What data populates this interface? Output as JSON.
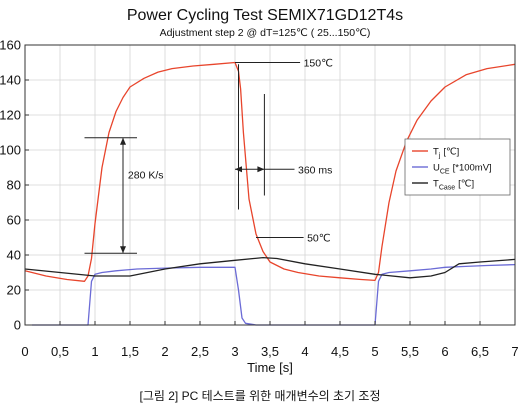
{
  "chart_data": {
    "type": "line",
    "title": "Power Cycling Test SEMIX71GD12T4s",
    "subtitle": "Adjustment step 2 @  dT=125℃ ( 25...150℃)",
    "xlabel": "Time [s]",
    "ylabel": "",
    "xlim": [
      0,
      7
    ],
    "ylim": [
      0,
      160
    ],
    "x_ticks": [
      "0",
      "0,5",
      "1",
      "1,5",
      "2",
      "2,5",
      "3",
      "3,5",
      "4",
      "4,5",
      "5",
      "5,5",
      "6",
      "6,5",
      "7"
    ],
    "y_ticks": [
      "0",
      "20",
      "40",
      "60",
      "80",
      "100",
      "120",
      "140",
      "160"
    ],
    "grid": true,
    "legend_position": "right",
    "colors": {
      "tj": "#e8452c",
      "uce": "#6b6bd6",
      "tcase": "#222222",
      "grid": "#d4d4d4"
    },
    "series": [
      {
        "name": "Tj [℃]",
        "legend_main": "T",
        "legend_sub": "j",
        "legend_unit": "[℃]",
        "x": [
          0,
          0.3,
          0.6,
          0.85,
          0.9,
          0.95,
          1.0,
          1.1,
          1.2,
          1.3,
          1.4,
          1.5,
          1.7,
          1.9,
          2.1,
          2.4,
          2.7,
          3.0,
          3.05,
          3.08,
          3.12,
          3.2,
          3.3,
          3.4,
          3.5,
          3.7,
          3.9,
          4.2,
          4.5,
          4.8,
          5.0,
          5.05,
          5.1,
          5.2,
          5.3,
          5.45,
          5.6,
          5.8,
          6.0,
          6.3,
          6.6,
          7.0
        ],
        "y": [
          31,
          28,
          26,
          25,
          28,
          38,
          58,
          90,
          110,
          122,
          130,
          136,
          141,
          144.5,
          146.5,
          148,
          149,
          150,
          145,
          135,
          110,
          72,
          52,
          42,
          36,
          32,
          30,
          28,
          27,
          26,
          25.5,
          30,
          45,
          70,
          88,
          105,
          117,
          128,
          136,
          143,
          146.5,
          149
        ]
      },
      {
        "name": "UCE [*100mV]",
        "legend_main": "U",
        "legend_sub": "CE",
        "legend_unit": "[*100mV]",
        "x": [
          0.1,
          0.9,
          0.95,
          1.0,
          1.1,
          1.3,
          1.6,
          2.0,
          2.5,
          3.0,
          3.05,
          3.1,
          3.15,
          3.3,
          4.0,
          5.0,
          5.05,
          5.1,
          5.2,
          5.5,
          5.8,
          6.0,
          6.3,
          6.6,
          7.0
        ],
        "y": [
          0,
          0,
          25,
          29,
          30,
          31,
          32,
          32.5,
          33,
          33,
          20,
          4,
          1,
          0,
          0,
          0,
          25,
          29,
          30,
          31,
          32,
          33,
          33.5,
          34,
          34.5
        ]
      },
      {
        "name": "TCase [℃]",
        "legend_main": "T",
        "legend_sub": "Case",
        "legend_unit": "[℃]",
        "x": [
          0,
          0.5,
          1.0,
          1.5,
          2.0,
          2.5,
          3.0,
          3.4,
          3.6,
          4.0,
          4.5,
          5.0,
          5.5,
          5.8,
          6.0,
          6.2,
          6.5,
          7.0
        ],
        "y": [
          32,
          30,
          28,
          28,
          32,
          35,
          37,
          38.5,
          38,
          35,
          32,
          29,
          27,
          28,
          30,
          35,
          36,
          37.5
        ]
      }
    ],
    "annotations": [
      {
        "text": "150℃"
      },
      {
        "text": "280 K/s"
      },
      {
        "text": "360 ms"
      },
      {
        "text": "50℃"
      }
    ]
  },
  "caption": "[그림 2] PC 테스트를 위한 매개변수의 초기 조정"
}
